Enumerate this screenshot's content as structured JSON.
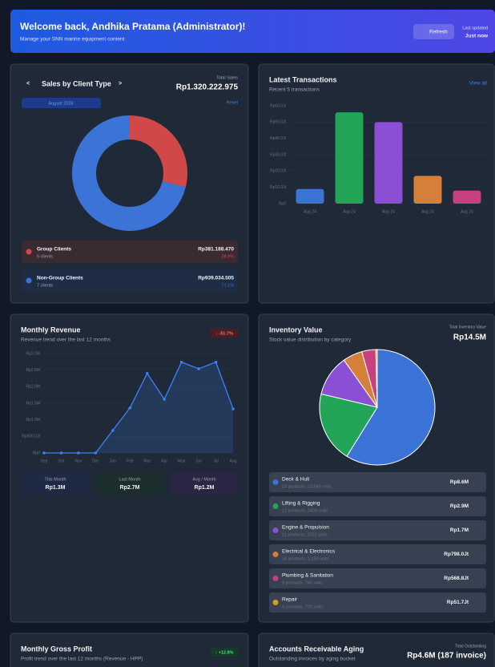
{
  "header": {
    "title": "Welcome back, Andhika Pratama (Administrator)!",
    "subtitle": "Manage your SNN marine equipment content",
    "refresh": "Refresh",
    "updated_label": "Last updated",
    "updated_value": "Just now"
  },
  "sales": {
    "title": "Sales by Client Type",
    "prev": "<",
    "next": ">",
    "total_label": "Total Sales",
    "total": "Rp1.320.222.975",
    "period": "August 2026",
    "reset": "Reset",
    "chart": {
      "type": "donut",
      "categories": [
        "Group Clients",
        "Non-Group Clients"
      ],
      "values": [
        381188470,
        939034505
      ],
      "colors": [
        "#d04848",
        "#3b74d6"
      ]
    },
    "items": [
      {
        "sub": "5 clients",
        "value": "Rp381.188.470",
        "pct": "28.9%"
      },
      {
        "sub": "7 clients",
        "value": "Rp939.034.505",
        "pct": "71.1%"
      }
    ]
  },
  "transactions": {
    "title": "Latest Transactions",
    "subtitle": "Recent 5 transactions",
    "link": "View all",
    "chart": {
      "type": "bar",
      "categories": [
        "Aug 24",
        "Aug 24",
        "Aug 24",
        "Aug 24",
        "Aug 24"
      ],
      "values": [
        9,
        56,
        50,
        17,
        8
      ],
      "colors": [
        "#3b74d6",
        "#22a559",
        "#8b4fd6",
        "#d4803a",
        "#c9407e"
      ],
      "ylim": [
        0,
        60
      ],
      "yticks": [
        {
          "value": 0,
          "label": "Rp0"
        },
        {
          "value": 10,
          "label": "Rp10.0Jt"
        },
        {
          "value": 20,
          "label": "Rp20.0Jt"
        },
        {
          "value": 30,
          "label": "Rp30.0Jt"
        },
        {
          "value": 40,
          "label": "Rp40.0Jt"
        },
        {
          "value": 50,
          "label": "Rp50.0Jt"
        },
        {
          "value": 60,
          "label": "Rp60.0Jt"
        }
      ]
    }
  },
  "revenue": {
    "title": "Monthly Revenue",
    "subtitle": "Revenue trend over the last 12 months",
    "badge": "↓ -51.7%",
    "chart": {
      "type": "line",
      "categories": [
        "Sep",
        "Oct",
        "Nov",
        "Dec",
        "Jan",
        "Feb",
        "Mar",
        "Apr",
        "May",
        "Jun",
        "Jul",
        "Aug"
      ],
      "values": [
        0,
        0,
        0,
        0,
        0.68,
        1.36,
        2.4,
        1.62,
        2.74,
        2.54,
        2.74,
        1.33
      ],
      "color": "#3b82f6",
      "ylim": [
        0,
        3
      ],
      "yticks": [
        {
          "value": 0,
          "label": "Rp0"
        },
        {
          "value": 0.5,
          "label": "Rp500.0Jt"
        },
        {
          "value": 1,
          "label": "Rp1.0M"
        },
        {
          "value": 1.5,
          "label": "Rp1.5M"
        },
        {
          "value": 2,
          "label": "Rp2.0M"
        },
        {
          "value": 2.5,
          "label": "Rp2.5M"
        },
        {
          "value": 3,
          "label": "Rp3.0M"
        }
      ],
      "grid": true
    },
    "stats": [
      {
        "label": "This Month",
        "value": "Rp1.3M"
      },
      {
        "label": "Last Month",
        "value": "Rp2.7M"
      },
      {
        "label": "Avg / Month",
        "value": "Rp1.2M"
      }
    ]
  },
  "inventory": {
    "title": "Inventory Value",
    "subtitle": "Stock value distribution by category",
    "total_label": "Total Inventory Value",
    "total": "Rp14.5M",
    "chart": {
      "type": "pie",
      "categories": [
        "Deck & Hull",
        "Lifting & Rigging",
        "Engine & Propulsion",
        "Electrical & Electronics",
        "Plumbing & Sanitation",
        "Repair"
      ],
      "values": [
        58.9,
        19.9,
        11.5,
        5.5,
        3.9,
        0.4
      ],
      "colors": [
        "#3b74d6",
        "#22a559",
        "#8b4fd6",
        "#d4803a",
        "#c9407e",
        "#d4a020"
      ]
    },
    "items": [
      {
        "sub": "23 products, 13,049 units",
        "value": "Rp8.6M"
      },
      {
        "sub": "12 products, 2403 units",
        "value": "Rp2.9M"
      },
      {
        "sub": "11 products, 2022 units",
        "value": "Rp1.7M"
      },
      {
        "sub": "18 products, 1,150 units",
        "value": "Rp798.0Jt"
      },
      {
        "sub": "9 products, 746 units",
        "value": "Rp568.8Jt"
      },
      {
        "sub": "4 products, 720 units",
        "value": "Rp51.7Jt"
      }
    ]
  },
  "gross_profit": {
    "title": "Monthly Gross Profit",
    "subtitle": "Profit trend over the last 12 months (Revenue - HPP)",
    "badge": "↑ +12.8%"
  },
  "receivable": {
    "title": "Accounts Receivable Aging",
    "subtitle": "Outstanding invoices by aging bucket",
    "total_label": "Total Outstanding",
    "total": "Rp4.6M (187 invoice)"
  }
}
